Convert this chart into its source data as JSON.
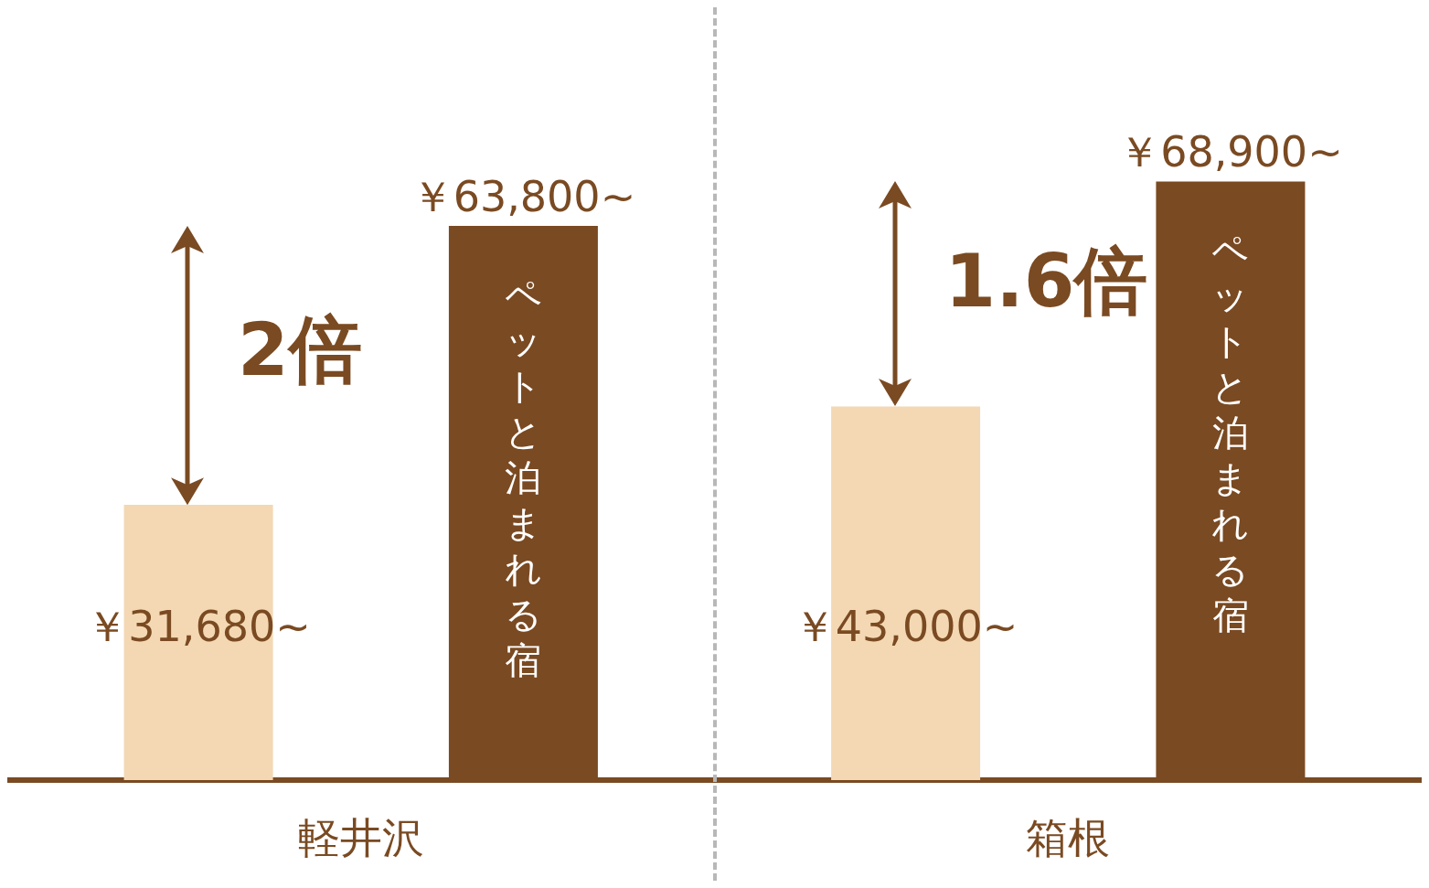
{
  "chart_data": {
    "type": "bar",
    "categories": [
      "軽井沢",
      "箱根"
    ],
    "series": [
      {
        "color": "#f3d8b3",
        "values": [
          31680,
          43000
        ],
        "value_labels": [
          "￥31,680~",
          "￥43,000~"
        ]
      },
      {
        "name": "ペットと泊まれる宿",
        "color": "#7a4a22",
        "values": [
          63800,
          68900
        ],
        "value_labels": [
          "￥63,800~",
          "￥68,900~"
        ]
      }
    ],
    "annotations": [
      "2倍",
      "1.6倍"
    ]
  }
}
